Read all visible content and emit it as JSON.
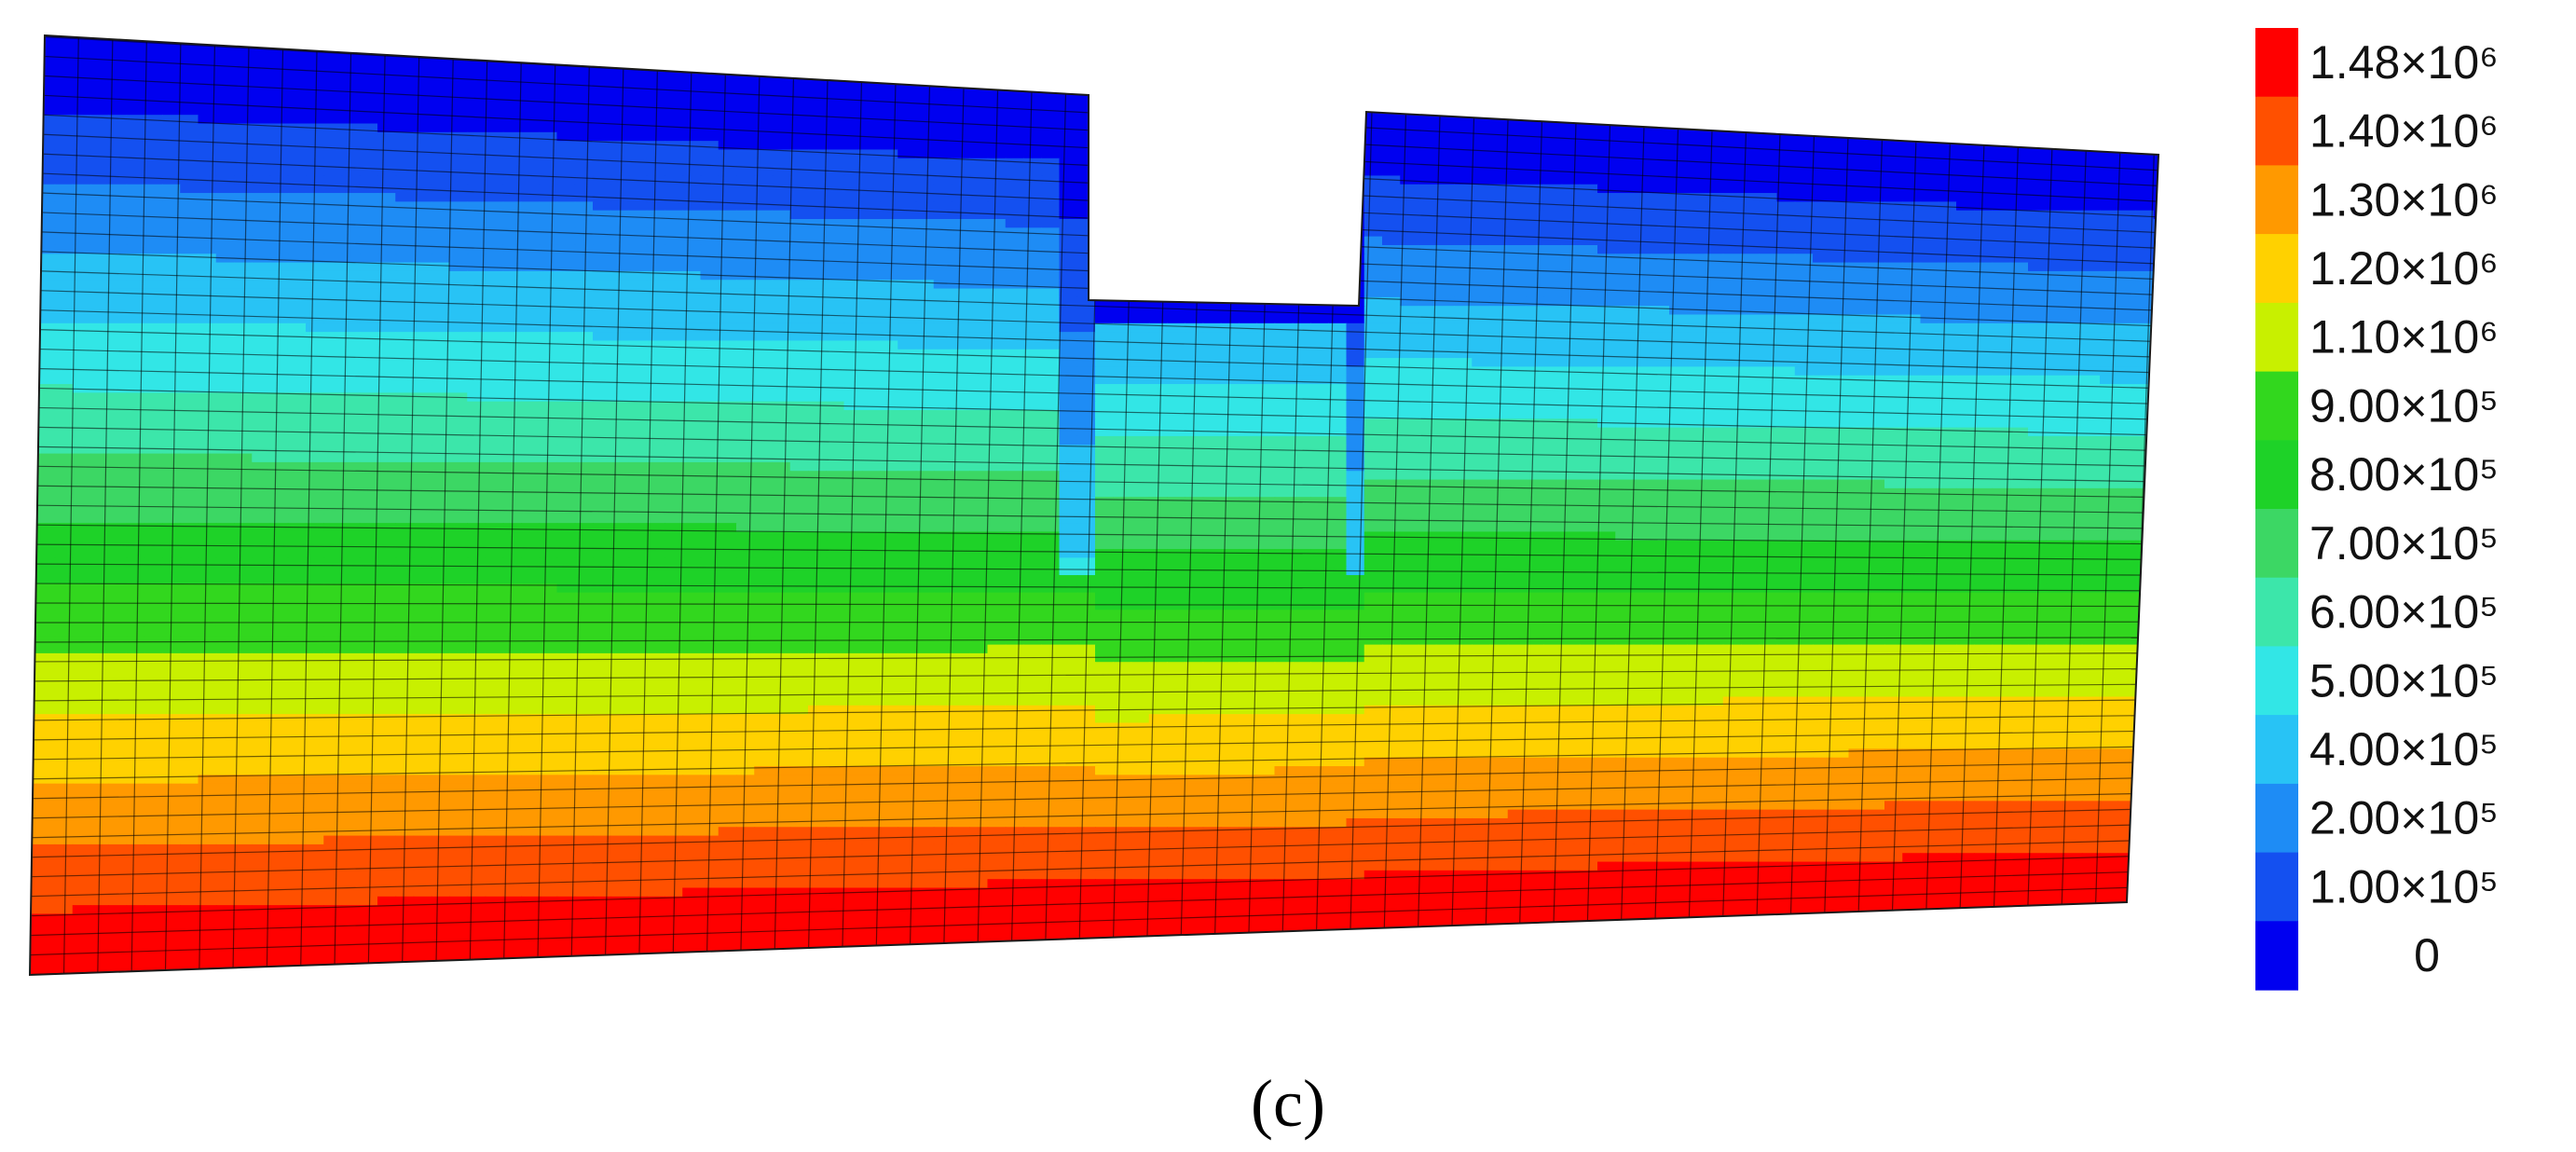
{
  "figure": {
    "caption": "(c)"
  },
  "legend": {
    "entries": [
      {
        "label": "1.48×10⁶",
        "value": 1480000,
        "color": "#ff0000"
      },
      {
        "label": "1.40×10⁶",
        "value": 1400000,
        "color": "#ff5000"
      },
      {
        "label": "1.30×10⁶",
        "value": 1300000,
        "color": "#ff9900"
      },
      {
        "label": "1.20×10⁶",
        "value": 1200000,
        "color": "#ffd100"
      },
      {
        "label": "1.10×10⁶",
        "value": 1100000,
        "color": "#c8f000"
      },
      {
        "label": "9.00×10⁵",
        "value": 900000,
        "color": "#32d71e"
      },
      {
        "label": "8.00×10⁵",
        "value": 800000,
        "color": "#1ed228"
      },
      {
        "label": "7.00×10⁵",
        "value": 700000,
        "color": "#3cd764"
      },
      {
        "label": "6.00×10⁵",
        "value": 600000,
        "color": "#3ce6aa"
      },
      {
        "label": "5.00×10⁵",
        "value": 500000,
        "color": "#32e6e6"
      },
      {
        "label": "4.00×10⁵",
        "value": 400000,
        "color": "#28c3f5"
      },
      {
        "label": "2.00×10⁵",
        "value": 200000,
        "color": "#1e8cf5"
      },
      {
        "label": "1.00×10⁵",
        "value": 100000,
        "color": "#1450f0"
      },
      {
        "label": "0",
        "value": 0,
        "color": "#0000f0"
      }
    ]
  }
}
